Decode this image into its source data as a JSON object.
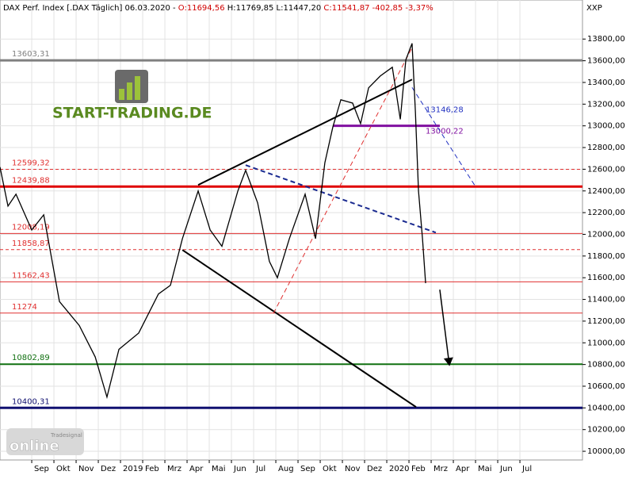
{
  "header": {
    "parts": [
      {
        "text": "DAX Perf. Index [.DAX  Täglich] 06.03.2020 - ",
        "color": "#000000"
      },
      {
        "text": "O:11694,56",
        "color": "#d00000"
      },
      {
        "text": " H:11769,85",
        "color": "#000000"
      },
      {
        "text": " L:11447,20",
        "color": "#000000"
      },
      {
        "text": " C:11541,87",
        "color": "#d00000"
      },
      {
        "text": " -402,85",
        "color": "#d00000"
      },
      {
        "text": " -3,37%",
        "color": "#d00000"
      }
    ],
    "symbol": "XXP"
  },
  "logo": {
    "brand": "START-TRADING.DE",
    "vendor": "Tradesignal",
    "product": "online"
  },
  "chart_data": {
    "type": "line",
    "x": [
      -0.43,
      -0.07,
      0.29,
      1,
      1.54,
      2.25,
      3.14,
      3.86,
      4.39,
      4.93,
      5.82,
      6.71,
      7.25,
      7.79,
      8.5,
      9.04,
      9.57,
      10.29,
      10.64,
      11.18,
      11.71,
      12.07,
      12.61,
      13.32,
      13.79,
      14.21,
      14.57,
      14.93,
      15.46,
      15.82,
      16.18,
      16.71,
      17.25,
      17.61,
      17.86,
      18.14,
      18.29,
      18.43,
      18.61,
      18.75
    ],
    "series": [
      {
        "name": "DAX",
        "color": "#000000",
        "values": [
          12620,
          12260,
          12370,
          12040,
          12180,
          11380,
          11160,
          10870,
          10500,
          10940,
          11090,
          11450,
          11530,
          11960,
          12400,
          12040,
          11890,
          12400,
          12590,
          12290,
          11750,
          11600,
          11960,
          12370,
          11960,
          12660,
          12990,
          13240,
          13210,
          13020,
          13350,
          13460,
          13540,
          13060,
          13610,
          13760,
          13130,
          12400,
          11960,
          11550
        ]
      }
    ],
    "xlim": [
      -0.43,
      25.82
    ],
    "xticks": [
      {
        "value": 1,
        "label": "Sep"
      },
      {
        "value": 2,
        "label": "Okt"
      },
      {
        "value": 3,
        "label": "Nov"
      },
      {
        "value": 4,
        "label": "Dez"
      },
      {
        "value": 5,
        "label": "2019"
      },
      {
        "value": 6,
        "label": "Feb"
      },
      {
        "value": 7,
        "label": "Mrz"
      },
      {
        "value": 8,
        "label": "Apr"
      },
      {
        "value": 9,
        "label": "Mai"
      },
      {
        "value": 10,
        "label": "Jun"
      },
      {
        "value": 11,
        "label": "Jul"
      },
      {
        "value": 12,
        "label": "Aug"
      },
      {
        "value": 13,
        "label": "Sep"
      },
      {
        "value": 14,
        "label": "Okt"
      },
      {
        "value": 15,
        "label": "Nov"
      },
      {
        "value": 16,
        "label": "Dez"
      },
      {
        "value": 17,
        "label": "2020"
      },
      {
        "value": 18,
        "label": "Feb"
      },
      {
        "value": 19,
        "label": "Mrz"
      },
      {
        "value": 20,
        "label": "Apr"
      },
      {
        "value": 21,
        "label": "Mai"
      },
      {
        "value": 22,
        "label": "Jun"
      },
      {
        "value": 23,
        "label": "Jul"
      }
    ],
    "ylim": [
      9920,
      14160
    ],
    "yticks": [
      {
        "value": 10000,
        "label": "10000,00"
      },
      {
        "value": 10200,
        "label": "10200,00"
      },
      {
        "value": 10400,
        "label": "10400,00"
      },
      {
        "value": 10600,
        "label": "10600,00"
      },
      {
        "value": 10800,
        "label": "10800,00"
      },
      {
        "value": 11000,
        "label": "11000,00"
      },
      {
        "value": 11200,
        "label": "11200,00"
      },
      {
        "value": 11400,
        "label": "11400,00"
      },
      {
        "value": 11600,
        "label": "11600,00"
      },
      {
        "value": 11800,
        "label": "11800,00"
      },
      {
        "value": 12000,
        "label": "12000,00"
      },
      {
        "value": 12200,
        "label": "12200,00"
      },
      {
        "value": 12400,
        "label": "12400,00"
      },
      {
        "value": 12600,
        "label": "12600,00"
      },
      {
        "value": 12800,
        "label": "12800,00"
      },
      {
        "value": 13000,
        "label": "13000,00"
      },
      {
        "value": 13200,
        "label": "13200,00"
      },
      {
        "value": 13400,
        "label": "13400,00"
      },
      {
        "value": 13600,
        "label": "13600,00"
      },
      {
        "value": 13800,
        "label": "13800,00"
      }
    ],
    "grid": true,
    "levels": [
      {
        "label": "13603,31",
        "value": 13603.31,
        "color": "#808080",
        "width": 3,
        "dash": false,
        "label_color": "#808080"
      },
      {
        "label": "12599,32",
        "value": 12599.32,
        "color": "#e03030",
        "width": 1,
        "dash": true,
        "label_color": "#e03030"
      },
      {
        "label": "12439,88",
        "value": 12439.88,
        "color": "#e00000",
        "width": 3,
        "dash": false,
        "label_color": "#e03030"
      },
      {
        "label": "12008,19",
        "value": 12008.19,
        "color": "#e03030",
        "width": 1,
        "dash": false,
        "label_color": "#e03030"
      },
      {
        "label": "11858,87",
        "value": 11858.87,
        "color": "#e03030",
        "width": 1,
        "dash": true,
        "label_color": "#e03030"
      },
      {
        "label": "11562,43",
        "value": 11562.43,
        "color": "#e03030",
        "width": 1,
        "dash": false,
        "label_color": "#e03030"
      },
      {
        "label": "11274",
        "value": 11274,
        "color": "#e03030",
        "width": 1,
        "dash": false,
        "label_color": "#e03030"
      },
      {
        "label": "10802,89",
        "value": 10802.89,
        "color": "#107010",
        "width": 2,
        "dash": false,
        "label_color": "#107010"
      },
      {
        "label": "10400,31",
        "value": 10400.31,
        "color": "#101070",
        "width": 3,
        "dash": false,
        "label_color": "#101070"
      }
    ],
    "side_levels": [
      {
        "label": "13146,28",
        "value": 13146.28,
        "color": "#2030c0"
      },
      {
        "label": "13000,22",
        "value": 13000.22,
        "color": "#8010a0",
        "x": [
          14.57,
          19.39
        ]
      }
    ],
    "trendlines": [
      {
        "x": [
          8.5,
          18.14
        ],
        "values": [
          12455,
          13427
        ],
        "color": "#000000",
        "width": 2,
        "dash": false
      },
      {
        "x": [
          7.79,
          18.32
        ],
        "values": [
          11856,
          10408
        ],
        "color": "#000000",
        "width": 2,
        "dash": false
      },
      {
        "x": [
          10.64,
          19.21
        ],
        "values": [
          12638,
          12016
        ],
        "color": "#1a2a90",
        "width": 2,
        "dash": true
      },
      {
        "x": [
          18.14,
          21
        ],
        "values": [
          13354,
          12440
        ],
        "color": "#2030c0",
        "width": 1,
        "dash": true
      },
      {
        "x": [
          11.89,
          18.14
        ],
        "values": [
          11271,
          13720
        ],
        "color": "#e03030",
        "width": 1,
        "dash": true
      },
      {
        "x": [
          19.39,
          19.82
        ],
        "values": [
          11490,
          10796
        ],
        "color": "#000000",
        "width": 1.5,
        "dash": false,
        "arrow": true
      }
    ]
  }
}
